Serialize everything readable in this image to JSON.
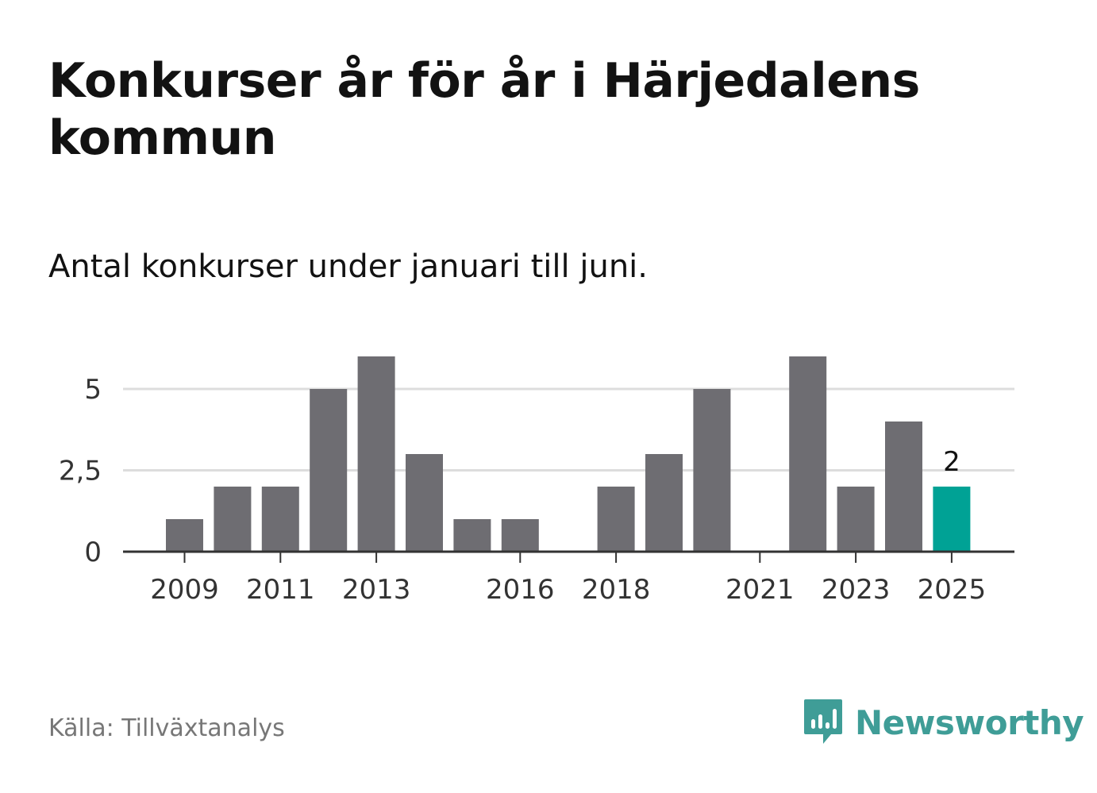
{
  "title": "Konkurser år för år i Härjedalens kommun",
  "subtitle": "Antal konkurser under januari till juni.",
  "source": "Källa: Tillväxtanalys",
  "brand": {
    "name": "Newsworthy",
    "icon": "newsworthy-logo-icon"
  },
  "colors": {
    "bar": "#6e6d72",
    "highlight": "#00a295",
    "grid": "#dddddd",
    "axis": "#333333",
    "brand": "#3f9d97"
  },
  "chart_data": {
    "type": "bar",
    "categories": [
      "2009",
      "2010",
      "2011",
      "2012",
      "2013",
      "2014",
      "2015",
      "2016",
      "2017",
      "2018",
      "2019",
      "2020",
      "2021",
      "2022",
      "2023",
      "2024",
      "2025"
    ],
    "values": [
      1,
      2,
      2,
      5,
      6,
      3,
      1,
      1,
      0,
      2,
      3,
      5,
      0,
      6,
      2,
      4,
      2
    ],
    "highlight_category": "2025",
    "highlight_value_label": "2",
    "x_tick_labels": [
      "2009",
      "2011",
      "2013",
      "2016",
      "2018",
      "2021",
      "2023",
      "2025"
    ],
    "y_ticks": [
      0,
      2.5,
      5
    ],
    "y_tick_labels": [
      "0",
      "2,5",
      "5"
    ],
    "ylim": [
      0,
      6
    ],
    "grid": true,
    "xlabel": "",
    "ylabel": ""
  }
}
